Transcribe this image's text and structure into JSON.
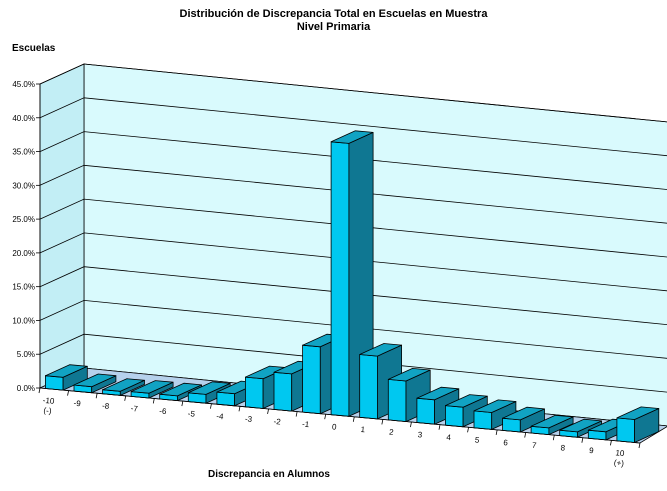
{
  "chart_data": {
    "type": "bar",
    "title": "Distribución de Discrepancia Total en Escuelas en Muestra",
    "subtitle": "Nivel Primaria",
    "ylabel": "Escuelas",
    "xlabel": "Discrepancia en Alumnos",
    "ylim": [
      0,
      45
    ],
    "y_ticks": [
      "0.0%",
      "5.0%",
      "10.0%",
      "15.0%",
      "20.0%",
      "25.0%",
      "30.0%",
      "35.0%",
      "40.0%",
      "45.0%"
    ],
    "categories": [
      "-10 (-)",
      "-9",
      "-8",
      "-7",
      "-6",
      "-5",
      "-4",
      "-3",
      "-2",
      "-1",
      "0",
      "1",
      "2",
      "3",
      "4",
      "5",
      "6",
      "7",
      "8",
      "9",
      "10 (+)"
    ],
    "values": [
      1.9,
      0.9,
      0.6,
      0.7,
      0.7,
      1.3,
      1.8,
      4.4,
      5.5,
      9.9,
      40.4,
      9.3,
      6.0,
      3.6,
      2.9,
      2.5,
      1.8,
      1.0,
      0.8,
      1.2,
      3.4
    ],
    "grid": true,
    "bar_color": "#00c8f0"
  }
}
